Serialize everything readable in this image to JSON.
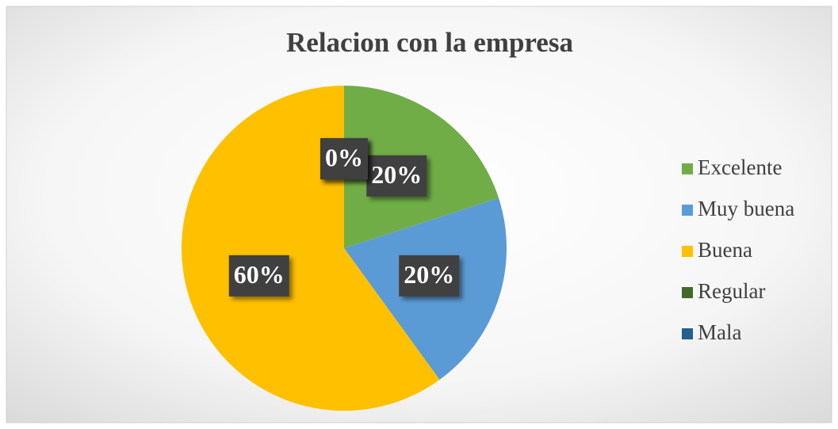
{
  "chart_data": {
    "type": "pie",
    "title": "Relacion con la empresa",
    "categories": [
      "Excelente",
      "Muy buena",
      "Buena",
      "Regular",
      "Mala"
    ],
    "values": [
      20,
      20,
      60,
      0,
      0
    ],
    "value_labels": [
      "20%",
      "20%",
      "60%",
      "0%",
      "0%"
    ],
    "colors": [
      "#70ad47",
      "#5b9bd5",
      "#ffc000",
      "#43682b",
      "#255e91"
    ],
    "legend": "right"
  }
}
